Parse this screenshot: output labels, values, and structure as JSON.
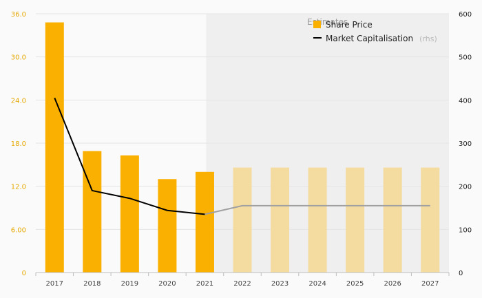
{
  "chart_data": {
    "type": "bar",
    "categories": [
      "2017",
      "2018",
      "2019",
      "2020",
      "2021",
      "2022",
      "2023",
      "2024",
      "2025",
      "2026",
      "2027"
    ],
    "estimate_start": "2022",
    "estimate_label": "Estimates",
    "series": [
      {
        "name": "Share Price",
        "type": "bar",
        "axis": "left",
        "values": [
          34.8,
          16.9,
          16.3,
          13.0,
          14.0,
          14.6,
          14.6,
          14.6,
          14.6,
          14.6,
          14.6
        ]
      },
      {
        "name": "Market Capitalisation",
        "name_suffix": "(rhs)",
        "type": "line",
        "axis": "right",
        "values": [
          405,
          190,
          172,
          144,
          135,
          155,
          155,
          155,
          155,
          155,
          155
        ]
      }
    ],
    "left_axis": {
      "min": 0,
      "max": 36,
      "ticks": [
        "0",
        "6.00",
        "12.0",
        "18.0",
        "24.0",
        "30.0",
        "36.0"
      ]
    },
    "right_axis": {
      "min": 0,
      "max": 600,
      "ticks": [
        "0",
        "100",
        "200",
        "300",
        "400",
        "500",
        "600"
      ]
    },
    "colors": {
      "bar": "#f9b000",
      "bar_estimate": "#f4dba0",
      "line": "#000000",
      "line_estimate": "#a0a0a0",
      "estimate_bg": "#efefef",
      "left_tick": "#e6a800"
    },
    "legend_position": "top-right",
    "grid": true
  }
}
